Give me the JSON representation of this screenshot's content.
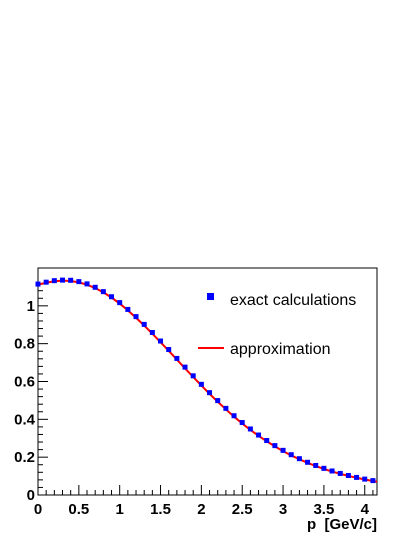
{
  "chart_data": {
    "type": "line",
    "title": "",
    "xlabel": "p  [GeV/c]",
    "ylabel": "",
    "xlim": [
      0,
      4.15
    ],
    "ylim": [
      0,
      1.2
    ],
    "x_ticks": [
      0,
      0.5,
      1,
      1.5,
      2,
      2.5,
      3,
      3.5,
      4
    ],
    "x_tick_labels": [
      "0",
      "0.5",
      "1",
      "1.5",
      "2",
      "2.5",
      "3",
      "3.5",
      "4"
    ],
    "y_ticks": [
      0,
      0.2,
      0.4,
      0.6,
      0.8,
      1
    ],
    "y_tick_labels": [
      "0",
      "0.2",
      "0.4",
      "0.6",
      "0.8",
      "1"
    ],
    "grid": false,
    "legend_position": "top-right",
    "series": [
      {
        "name": "exact calculations",
        "type": "scatter",
        "marker": "square",
        "color": "#0000ff",
        "x": [
          0.0,
          0.1,
          0.2,
          0.3,
          0.4,
          0.5,
          0.6,
          0.7,
          0.8,
          0.9,
          1.0,
          1.1,
          1.2,
          1.3,
          1.4,
          1.5,
          1.6,
          1.7,
          1.8,
          1.9,
          2.0,
          2.1,
          2.2,
          2.3,
          2.4,
          2.5,
          2.6,
          2.7,
          2.8,
          2.9,
          3.0,
          3.1,
          3.2,
          3.3,
          3.4,
          3.5,
          3.6,
          3.7,
          3.8,
          3.9,
          4.0,
          4.1
        ],
        "y": [
          1.115,
          1.125,
          1.133,
          1.136,
          1.135,
          1.128,
          1.116,
          1.098,
          1.075,
          1.048,
          1.017,
          0.981,
          0.943,
          0.902,
          0.859,
          0.814,
          0.769,
          0.722,
          0.676,
          0.63,
          0.585,
          0.541,
          0.499,
          0.458,
          0.419,
          0.383,
          0.349,
          0.317,
          0.288,
          0.261,
          0.236,
          0.213,
          0.192,
          0.173,
          0.156,
          0.141,
          0.127,
          0.114,
          0.103,
          0.093,
          0.084,
          0.076
        ]
      },
      {
        "name": "approximation",
        "type": "line",
        "color": "#ff0000",
        "x": [
          0.0,
          0.1,
          0.2,
          0.3,
          0.4,
          0.5,
          0.6,
          0.7,
          0.8,
          0.9,
          1.0,
          1.1,
          1.2,
          1.3,
          1.4,
          1.5,
          1.6,
          1.7,
          1.8,
          1.9,
          2.0,
          2.1,
          2.2,
          2.3,
          2.4,
          2.5,
          2.6,
          2.7,
          2.8,
          2.9,
          3.0,
          3.1,
          3.2,
          3.3,
          3.4,
          3.5,
          3.6,
          3.7,
          3.8,
          3.9,
          4.0,
          4.1,
          4.15
        ],
        "y": [
          1.112,
          1.122,
          1.13,
          1.133,
          1.131,
          1.124,
          1.112,
          1.094,
          1.071,
          1.044,
          1.012,
          0.976,
          0.937,
          0.896,
          0.853,
          0.808,
          0.762,
          0.716,
          0.669,
          0.624,
          0.579,
          0.535,
          0.493,
          0.453,
          0.414,
          0.378,
          0.344,
          0.313,
          0.284,
          0.257,
          0.232,
          0.209,
          0.189,
          0.17,
          0.153,
          0.138,
          0.124,
          0.112,
          0.101,
          0.091,
          0.082,
          0.074,
          0.07
        ]
      }
    ]
  }
}
